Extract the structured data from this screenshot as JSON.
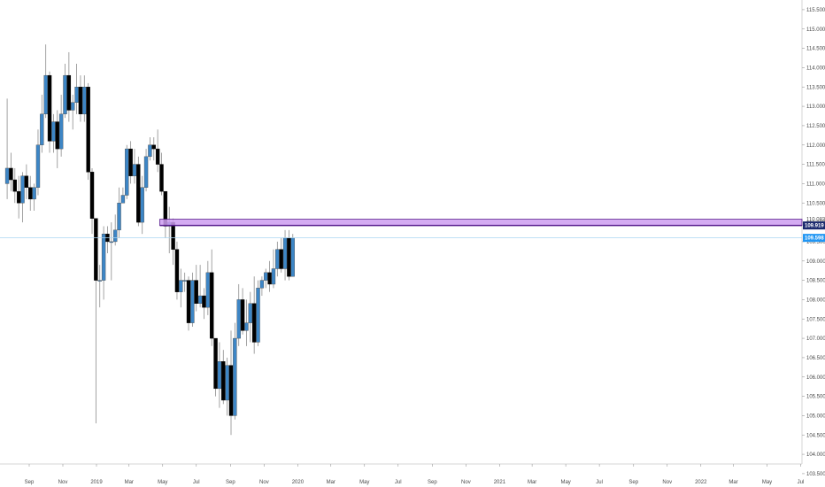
{
  "chart_data": {
    "type": "candlestick",
    "title": "",
    "xlabel": "",
    "ylabel": "",
    "ylim": [
      103.75,
      115.75
    ],
    "grid": false,
    "colors": {
      "up": "#3d86c6",
      "down": "#000000",
      "zone_fill": "#cc9cf0",
      "zone_border": "#5a1f8f",
      "current_price_line": "#aad6f2",
      "current_price_tag": "#2196f3",
      "zone_tag": "#1b2a6e"
    },
    "y_ticks": [
      "103.500",
      "104.000",
      "104.500",
      "105.000",
      "105.500",
      "106.000",
      "106.500",
      "107.000",
      "107.500",
      "108.000",
      "108.500",
      "109.000",
      "109.500",
      "110.000",
      "110.500",
      "111.000",
      "111.500",
      "112.000",
      "112.500",
      "113.000",
      "113.500",
      "114.000",
      "114.500",
      "115.000",
      "115.500"
    ],
    "x_ticks": [
      {
        "label": "Sep",
        "date": "2018-09-01"
      },
      {
        "label": "Nov",
        "date": "2018-11-01"
      },
      {
        "label": "2019",
        "date": "2019-01-01"
      },
      {
        "label": "Mar",
        "date": "2019-03-01"
      },
      {
        "label": "May",
        "date": "2019-05-01"
      },
      {
        "label": "Jul",
        "date": "2019-07-01"
      },
      {
        "label": "Sep",
        "date": "2019-09-01"
      },
      {
        "label": "Nov",
        "date": "2019-11-01"
      },
      {
        "label": "2020",
        "date": "2020-01-01"
      },
      {
        "label": "Mar",
        "date": "2020-03-01"
      },
      {
        "label": "May",
        "date": "2020-05-01"
      },
      {
        "label": "Jul",
        "date": "2020-07-01"
      },
      {
        "label": "Sep",
        "date": "2020-09-01"
      },
      {
        "label": "Nov",
        "date": "2020-11-01"
      },
      {
        "label": "2021",
        "date": "2021-01-01"
      },
      {
        "label": "Mar",
        "date": "2021-03-01"
      },
      {
        "label": "May",
        "date": "2021-05-01"
      },
      {
        "label": "Jul",
        "date": "2021-07-01"
      },
      {
        "label": "Sep",
        "date": "2021-09-01"
      },
      {
        "label": "Nov",
        "date": "2021-11-01"
      },
      {
        "label": "2022",
        "date": "2022-01-01"
      },
      {
        "label": "Mar",
        "date": "2022-03-01"
      },
      {
        "label": "May",
        "date": "2022-05-01"
      },
      {
        "label": "Jul",
        "date": "2022-07-01"
      }
    ],
    "candles": [
      {
        "date": "2018-07-23",
        "open": 111.0,
        "high": 113.2,
        "low": 110.6,
        "close": 111.4
      },
      {
        "date": "2018-07-30",
        "open": 111.4,
        "high": 111.8,
        "low": 110.8,
        "close": 111.1
      },
      {
        "date": "2018-08-06",
        "open": 111.1,
        "high": 111.4,
        "low": 110.5,
        "close": 110.8
      },
      {
        "date": "2018-08-13",
        "open": 110.8,
        "high": 111.2,
        "low": 110.1,
        "close": 110.5
      },
      {
        "date": "2018-08-20",
        "open": 110.5,
        "high": 111.3,
        "low": 110.0,
        "close": 111.2
      },
      {
        "date": "2018-08-27",
        "open": 111.2,
        "high": 111.5,
        "low": 110.6,
        "close": 110.9
      },
      {
        "date": "2018-09-03",
        "open": 110.9,
        "high": 111.2,
        "low": 110.3,
        "close": 110.6
      },
      {
        "date": "2018-09-10",
        "open": 110.6,
        "high": 111.0,
        "low": 110.3,
        "close": 110.9
      },
      {
        "date": "2018-09-17",
        "open": 110.9,
        "high": 112.4,
        "low": 110.7,
        "close": 112.0
      },
      {
        "date": "2018-09-24",
        "open": 112.0,
        "high": 113.3,
        "low": 111.8,
        "close": 112.8
      },
      {
        "date": "2018-10-01",
        "open": 112.8,
        "high": 114.6,
        "low": 112.7,
        "close": 113.8
      },
      {
        "date": "2018-10-08",
        "open": 113.8,
        "high": 113.9,
        "low": 111.8,
        "close": 112.1
      },
      {
        "date": "2018-10-15",
        "open": 112.1,
        "high": 112.8,
        "low": 111.8,
        "close": 112.6
      },
      {
        "date": "2018-10-22",
        "open": 112.6,
        "high": 112.9,
        "low": 111.4,
        "close": 111.9
      },
      {
        "date": "2018-10-29",
        "open": 111.9,
        "high": 113.3,
        "low": 111.7,
        "close": 112.8
      },
      {
        "date": "2018-11-05",
        "open": 112.8,
        "high": 114.1,
        "low": 112.7,
        "close": 113.8
      },
      {
        "date": "2018-11-12",
        "open": 113.8,
        "high": 114.4,
        "low": 112.6,
        "close": 112.9
      },
      {
        "date": "2018-11-19",
        "open": 112.9,
        "high": 113.3,
        "low": 112.4,
        "close": 113.1
      },
      {
        "date": "2018-11-26",
        "open": 113.1,
        "high": 114.1,
        "low": 112.8,
        "close": 113.5
      },
      {
        "date": "2018-12-03",
        "open": 113.5,
        "high": 113.8,
        "low": 112.6,
        "close": 112.8
      },
      {
        "date": "2018-12-10",
        "open": 112.8,
        "high": 113.8,
        "low": 112.6,
        "close": 113.5
      },
      {
        "date": "2018-12-17",
        "open": 113.5,
        "high": 113.6,
        "low": 111.1,
        "close": 111.3
      },
      {
        "date": "2018-12-24",
        "open": 111.3,
        "high": 111.4,
        "low": 109.7,
        "close": 110.1
      },
      {
        "date": "2018-12-31",
        "open": 110.1,
        "high": 110.1,
        "low": 104.8,
        "close": 108.5
      },
      {
        "date": "2019-01-07",
        "open": 108.5,
        "high": 108.9,
        "low": 107.8,
        "close": 108.5
      },
      {
        "date": "2019-01-14",
        "open": 108.5,
        "high": 109.9,
        "low": 108.0,
        "close": 109.7
      },
      {
        "date": "2019-01-21",
        "open": 109.7,
        "high": 109.9,
        "low": 109.2,
        "close": 109.5
      },
      {
        "date": "2019-01-28",
        "open": 109.5,
        "high": 110.0,
        "low": 108.5,
        "close": 109.5
      },
      {
        "date": "2019-02-04",
        "open": 109.5,
        "high": 110.2,
        "low": 109.4,
        "close": 109.8
      },
      {
        "date": "2019-02-11",
        "open": 109.8,
        "high": 110.9,
        "low": 109.6,
        "close": 110.5
      },
      {
        "date": "2019-02-18",
        "open": 110.5,
        "high": 110.9,
        "low": 110.5,
        "close": 110.7
      },
      {
        "date": "2019-02-25",
        "open": 110.7,
        "high": 112.0,
        "low": 110.6,
        "close": 111.9
      },
      {
        "date": "2019-03-04",
        "open": 111.9,
        "high": 112.1,
        "low": 111.0,
        "close": 111.2
      },
      {
        "date": "2019-03-11",
        "open": 111.2,
        "high": 111.9,
        "low": 111.0,
        "close": 111.5
      },
      {
        "date": "2019-03-18",
        "open": 111.5,
        "high": 111.7,
        "low": 109.9,
        "close": 110.0
      },
      {
        "date": "2019-03-25",
        "open": 110.0,
        "high": 111.2,
        "low": 109.7,
        "close": 110.9
      },
      {
        "date": "2019-04-01",
        "open": 110.9,
        "high": 111.9,
        "low": 110.8,
        "close": 111.7
      },
      {
        "date": "2019-04-08",
        "open": 111.7,
        "high": 112.2,
        "low": 111.6,
        "close": 112.0
      },
      {
        "date": "2019-04-15",
        "open": 112.0,
        "high": 112.2,
        "low": 111.6,
        "close": 111.9
      },
      {
        "date": "2019-04-22",
        "open": 111.9,
        "high": 112.4,
        "low": 111.3,
        "close": 111.5
      },
      {
        "date": "2019-04-29",
        "open": 111.5,
        "high": 111.8,
        "low": 110.7,
        "close": 110.8
      },
      {
        "date": "2019-05-06",
        "open": 110.8,
        "high": 110.8,
        "low": 109.6,
        "close": 109.9
      },
      {
        "date": "2019-05-13",
        "open": 109.9,
        "high": 110.4,
        "low": 109.2,
        "close": 110.0
      },
      {
        "date": "2019-05-20",
        "open": 110.0,
        "high": 110.1,
        "low": 108.9,
        "close": 109.3
      },
      {
        "date": "2019-05-27",
        "open": 109.3,
        "high": 109.5,
        "low": 108.0,
        "close": 108.2
      },
      {
        "date": "2019-06-03",
        "open": 108.2,
        "high": 108.8,
        "low": 107.8,
        "close": 108.5
      },
      {
        "date": "2019-06-10",
        "open": 108.5,
        "high": 108.7,
        "low": 108.2,
        "close": 108.5
      },
      {
        "date": "2019-06-17",
        "open": 108.5,
        "high": 108.6,
        "low": 107.2,
        "close": 107.4
      },
      {
        "date": "2019-06-24",
        "open": 107.4,
        "high": 108.7,
        "low": 107.3,
        "close": 108.5
      },
      {
        "date": "2019-07-01",
        "open": 108.5,
        "high": 108.9,
        "low": 107.7,
        "close": 107.9
      },
      {
        "date": "2019-07-08",
        "open": 107.9,
        "high": 108.9,
        "low": 107.8,
        "close": 108.1
      },
      {
        "date": "2019-07-15",
        "open": 108.1,
        "high": 108.3,
        "low": 107.5,
        "close": 107.8
      },
      {
        "date": "2019-07-22",
        "open": 107.8,
        "high": 109.0,
        "low": 107.6,
        "close": 108.7
      },
      {
        "date": "2019-07-29",
        "open": 108.7,
        "high": 109.3,
        "low": 106.8,
        "close": 107.0
      },
      {
        "date": "2019-08-05",
        "open": 107.0,
        "high": 107.0,
        "low": 105.5,
        "close": 105.7
      },
      {
        "date": "2019-08-12",
        "open": 105.7,
        "high": 106.9,
        "low": 105.2,
        "close": 106.4
      },
      {
        "date": "2019-08-19",
        "open": 106.4,
        "high": 106.7,
        "low": 105.3,
        "close": 105.4
      },
      {
        "date": "2019-08-26",
        "open": 105.4,
        "high": 106.5,
        "low": 105.0,
        "close": 106.3
      },
      {
        "date": "2019-09-02",
        "open": 106.3,
        "high": 107.2,
        "low": 104.5,
        "close": 105.0
      },
      {
        "date": "2019-09-09",
        "open": 105.0,
        "high": 107.4,
        "low": 104.9,
        "close": 107.0
      },
      {
        "date": "2019-09-16",
        "open": 107.0,
        "high": 108.4,
        "low": 106.8,
        "close": 108.0
      },
      {
        "date": "2019-09-23",
        "open": 108.0,
        "high": 108.3,
        "low": 107.1,
        "close": 107.2
      },
      {
        "date": "2019-09-30",
        "open": 107.2,
        "high": 108.0,
        "low": 106.8,
        "close": 107.4
      },
      {
        "date": "2019-10-07",
        "open": 107.4,
        "high": 108.2,
        "low": 106.9,
        "close": 107.9
      },
      {
        "date": "2019-10-14",
        "open": 107.9,
        "high": 108.6,
        "low": 106.6,
        "close": 106.9
      },
      {
        "date": "2019-10-21",
        "open": 106.9,
        "high": 108.5,
        "low": 106.8,
        "close": 108.3
      },
      {
        "date": "2019-10-28",
        "open": 108.3,
        "high": 108.6,
        "low": 108.1,
        "close": 108.5
      },
      {
        "date": "2019-11-04",
        "open": 108.5,
        "high": 108.8,
        "low": 108.3,
        "close": 108.7
      },
      {
        "date": "2019-11-11",
        "open": 108.7,
        "high": 109.0,
        "low": 108.2,
        "close": 108.4
      },
      {
        "date": "2019-11-18",
        "open": 108.4,
        "high": 109.3,
        "low": 108.3,
        "close": 108.8
      },
      {
        "date": "2019-11-25",
        "open": 108.8,
        "high": 109.5,
        "low": 108.6,
        "close": 109.3
      },
      {
        "date": "2019-12-02",
        "open": 109.3,
        "high": 109.6,
        "low": 108.7,
        "close": 108.8
      },
      {
        "date": "2019-12-09",
        "open": 108.8,
        "high": 109.8,
        "low": 108.5,
        "close": 109.6
      },
      {
        "date": "2019-12-16",
        "open": 109.6,
        "high": 109.8,
        "low": 108.5,
        "close": 108.6
      },
      {
        "date": "2019-12-23",
        "open": 108.6,
        "high": 109.7,
        "low": 108.6,
        "close": 109.6
      }
    ],
    "resistance_zone": {
      "from_date": "2019-04-29",
      "low": 109.919,
      "high": 110.08
    },
    "zone_top_label": "110.083",
    "zone_price_label": "109.919",
    "current_price": 109.598,
    "current_price_label": "109.598"
  }
}
